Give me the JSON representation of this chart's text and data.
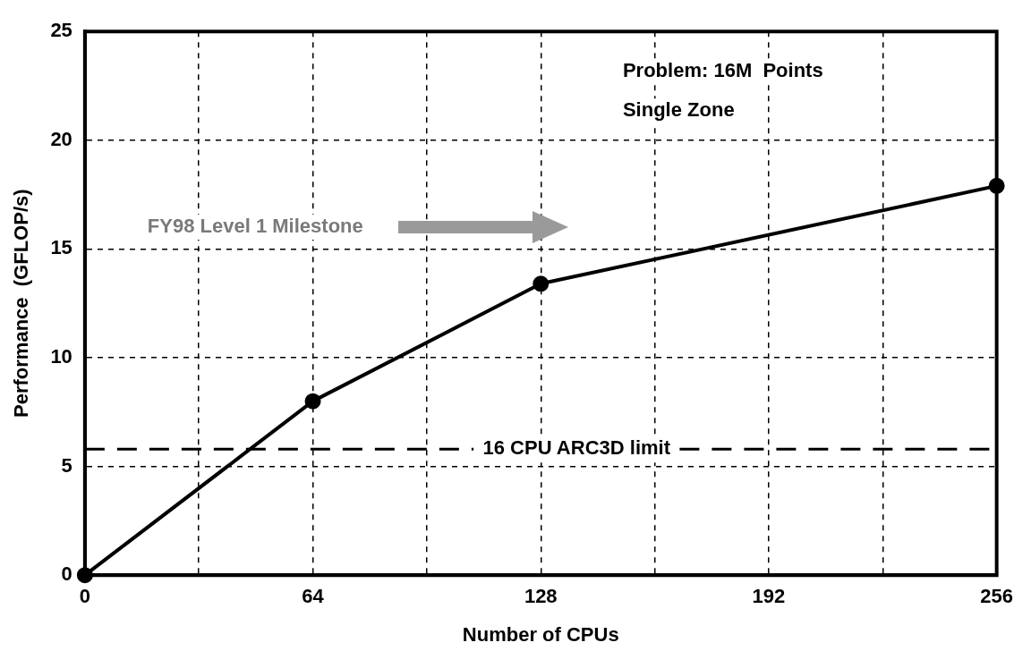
{
  "chart_data": {
    "type": "line",
    "xlabel": "Number of CPUs",
    "ylabel": "Performance  (GFLOP/s)",
    "x": [
      0,
      64,
      128,
      256
    ],
    "series": [
      {
        "color": "#000000",
        "values": [
          0,
          8,
          13.4,
          17.9
        ]
      }
    ],
    "xlim": [
      0,
      256
    ],
    "xticks": [
      0,
      {
        "value": 32,
        "label": null
      },
      64,
      {
        "value": 96,
        "label": null
      },
      128,
      {
        "value": 160,
        "label": null
      },
      192,
      {
        "value": 224,
        "label": null
      },
      256
    ],
    "ylim": [
      0,
      25
    ],
    "yticks": [
      0,
      5,
      10,
      15,
      20,
      25
    ],
    "grid": true,
    "legend": false,
    "marker": "circle",
    "line_style": "solid",
    "ref_lines": [
      {
        "axis": "y",
        "value": 5.8,
        "label": "16 CPU ARC3D limit",
        "color": "#000000",
        "line_style": "dashed"
      }
    ],
    "annotations": [
      "FY98 Level 1 Milestone",
      "Problem: 16M  Points",
      "Single Zone"
    ]
  }
}
